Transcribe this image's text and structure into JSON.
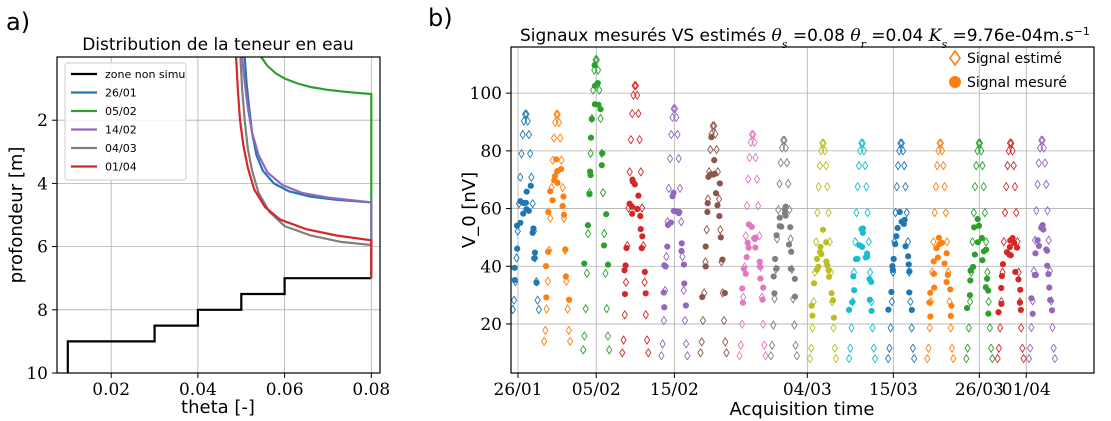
{
  "panel_a_label": "a)",
  "panel_b_label": "b)",
  "chart_data": [
    {
      "type": "line",
      "title": "Distribution de la teneur en eau",
      "xlabel": "theta [-]",
      "ylabel": "profondeur [m]",
      "xlim": [
        0.0075,
        0.082
      ],
      "ylim": [
        10,
        0
      ],
      "y_inverted": true,
      "x_ticks": [
        0.02,
        0.04,
        0.06,
        0.08
      ],
      "x_tick_labels": [
        "0.02",
        "0.04",
        "0.06",
        "0.08"
      ],
      "y_ticks": [
        2,
        4,
        6,
        8,
        10
      ],
      "y_tick_labels": [
        "2",
        "4",
        "6",
        "8",
        "10"
      ],
      "grid": true,
      "legend_position": "upper-left",
      "series": [
        {
          "name": "zone non simu",
          "color": "#000000",
          "x": [
            0.01,
            0.01,
            0.03,
            0.03,
            0.04,
            0.04,
            0.05,
            0.05,
            0.06,
            0.06,
            0.08
          ],
          "y": [
            10,
            9,
            9,
            8.5,
            8.5,
            8,
            8,
            7.5,
            7.5,
            7,
            7
          ]
        },
        {
          "name": "26/01",
          "color": "#1f77b4",
          "x": [
            0.0508,
            0.0512,
            0.0518,
            0.0525,
            0.0535,
            0.055,
            0.0575,
            0.061,
            0.066,
            0.072,
            0.08,
            0.08
          ],
          "y": [
            0,
            0.8,
            1.6,
            2.4,
            3.1,
            3.6,
            4.0,
            4.25,
            4.42,
            4.52,
            4.6,
            7
          ]
        },
        {
          "name": "05/02",
          "color": "#2ca02c",
          "x": [
            0.0546,
            0.056,
            0.058,
            0.06,
            0.063,
            0.066,
            0.07,
            0.074,
            0.077,
            0.08,
            0.08
          ],
          "y": [
            0,
            0.28,
            0.52,
            0.68,
            0.84,
            0.95,
            1.04,
            1.1,
            1.14,
            1.17,
            7
          ]
        },
        {
          "name": "14/02",
          "color": "#9467bd",
          "x": [
            0.0502,
            0.0508,
            0.0515,
            0.0525,
            0.054,
            0.056,
            0.0595,
            0.064,
            0.07,
            0.08,
            0.08
          ],
          "y": [
            0,
            0.8,
            1.6,
            2.4,
            3.1,
            3.65,
            4.05,
            4.3,
            4.45,
            4.6,
            7
          ]
        },
        {
          "name": "04/03",
          "color": "#7f7f7f",
          "x": [
            0.0498,
            0.0502,
            0.0508,
            0.0515,
            0.0525,
            0.054,
            0.0565,
            0.06,
            0.066,
            0.073,
            0.08,
            0.08
          ],
          "y": [
            0,
            1.0,
            2.0,
            2.9,
            3.6,
            4.3,
            4.9,
            5.35,
            5.65,
            5.85,
            5.95,
            7
          ]
        },
        {
          "name": "01/04",
          "color": "#d62728",
          "x": [
            0.0488,
            0.0492,
            0.0497,
            0.0505,
            0.0515,
            0.053,
            0.0555,
            0.059,
            0.065,
            0.072,
            0.08,
            0.08
          ],
          "y": [
            0,
            1.0,
            2.0,
            2.8,
            3.5,
            4.2,
            4.75,
            5.15,
            5.45,
            5.65,
            5.8,
            7
          ]
        }
      ]
    },
    {
      "type": "scatter",
      "title_prefix": "Signaux mesurés VS estimés",
      "title_params": [
        {
          "symbol": "θ",
          "sub": "s",
          "value": "=0.08"
        },
        {
          "symbol": "θ",
          "sub": "r",
          "value": "=0.04"
        },
        {
          "symbol": "K",
          "sub": "s",
          "value": "=9.76e-04m.s",
          "sup": "−1"
        }
      ],
      "xlabel": "Acquisition time",
      "ylabel": "V_0 [nV]",
      "ylim": [
        3,
        116
      ],
      "x_range_days": [
        0,
        72
      ],
      "y_ticks": [
        20,
        40,
        60,
        80,
        100
      ],
      "y_tick_labels": [
        "20",
        "40",
        "60",
        "80",
        "100"
      ],
      "x_tick_labels": [
        "26/01",
        "05/02",
        "15/02",
        "04/03",
        "15/03",
        "26/03",
        "01/04"
      ],
      "x_tick_dates": [
        "2026-01-26",
        "2026-02-05",
        "2026-02-15",
        "2026-03-04",
        "2026-03-15",
        "2026-03-26",
        "2026-04-01"
      ],
      "grid": true,
      "legend_position": "upper-right",
      "legend": [
        {
          "label": "Signal estimé",
          "marker": "open-diamond",
          "color": "#ff7f0e"
        },
        {
          "label": "Signal mesuré",
          "marker": "filled-circle",
          "color": "#ff7f0e"
        }
      ],
      "series": [
        {
          "date": "2026-01-27",
          "color": "#1f77b4",
          "est_peak": 93,
          "est_min": 25,
          "meas_peak": 72,
          "meas_min": 25
        },
        {
          "date": "2026-01-31",
          "color": "#ff7f0e",
          "est_peak": 93,
          "est_min": 14,
          "meas_peak": 85,
          "meas_min": 15
        },
        {
          "date": "2026-02-05",
          "color": "#2ca02c",
          "est_peak": 112,
          "est_min": 11,
          "meas_peak": 111,
          "meas_min": 20
        },
        {
          "date": "2026-02-10",
          "color": "#d62728",
          "est_peak": 103,
          "est_min": 10,
          "meas_peak": 80,
          "meas_min": 15
        },
        {
          "date": "2026-02-15",
          "color": "#9467bd",
          "est_peak": 95,
          "est_min": 9,
          "meas_peak": 67,
          "meas_min": 14
        },
        {
          "date": "2026-02-20",
          "color": "#8c564b",
          "est_peak": 89,
          "est_min": 10,
          "meas_peak": 87,
          "meas_min": 16
        },
        {
          "date": "2026-02-25",
          "color": "#e377c2",
          "est_peak": 86,
          "est_min": 9,
          "meas_peak": 58,
          "meas_min": 20
        },
        {
          "date": "2026-03-01",
          "color": "#7f7f7f",
          "est_peak": 84,
          "est_min": 9,
          "meas_peak": 64,
          "meas_min": 20
        },
        {
          "date": "2026-03-06",
          "color": "#bcbd22",
          "est_peak": 83,
          "est_min": 8,
          "meas_peak": 53,
          "meas_min": 15
        },
        {
          "date": "2026-03-11",
          "color": "#17becf",
          "est_peak": 83,
          "est_min": 8,
          "meas_peak": 54,
          "meas_min": 17
        },
        {
          "date": "2026-03-16",
          "color": "#1f77b4",
          "est_peak": 83,
          "est_min": 8,
          "meas_peak": 61,
          "meas_min": 16
        },
        {
          "date": "2026-03-21",
          "color": "#ff7f0e",
          "est_peak": 83,
          "est_min": 8,
          "meas_peak": 52,
          "meas_min": 14
        },
        {
          "date": "2026-03-26",
          "color": "#2ca02c",
          "est_peak": 83,
          "est_min": 8,
          "meas_peak": 57,
          "meas_min": 16
        },
        {
          "date": "2026-03-30",
          "color": "#d62728",
          "est_peak": 83,
          "est_min": 8,
          "meas_peak": 53,
          "meas_min": 16
        },
        {
          "date": "2026-04-03",
          "color": "#9467bd",
          "est_peak": 84,
          "est_min": 8,
          "meas_peak": 57,
          "meas_min": 16
        }
      ]
    }
  ]
}
